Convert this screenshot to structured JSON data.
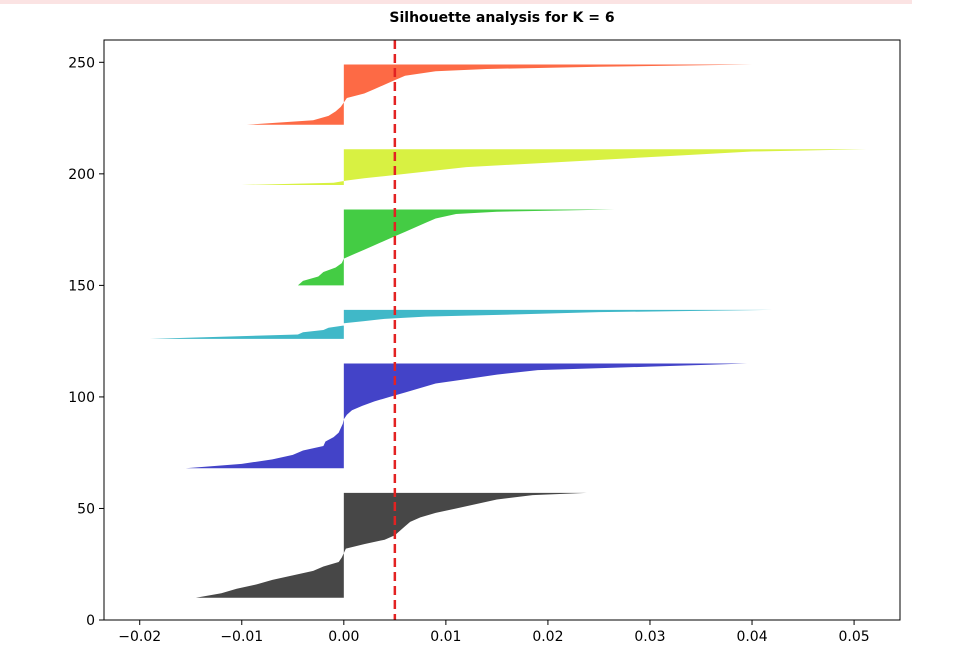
{
  "chart_data": {
    "type": "area",
    "title": "Silhouette analysis for K = 6",
    "xlabel": "",
    "ylabel": "",
    "xlim": [
      -0.0235,
      0.0545
    ],
    "ylim": [
      0,
      260
    ],
    "xticks": [
      -0.02,
      -0.01,
      0.0,
      0.01,
      0.02,
      0.03,
      0.04,
      0.05
    ],
    "xtick_labels": [
      "−0.02",
      "−0.01",
      "0.00",
      "0.01",
      "0.02",
      "0.03",
      "0.04",
      "0.05"
    ],
    "yticks": [
      0,
      50,
      100,
      150,
      200,
      250
    ],
    "ytick_labels": [
      "0",
      "50",
      "100",
      "150",
      "200",
      "250"
    ],
    "grid": false,
    "average_silhouette_score": 0.005,
    "series": [
      {
        "color": "#474747",
        "y_lower": 10,
        "y_upper": 57,
        "profile": [
          [
            10,
            -0.0145
          ],
          [
            12,
            -0.012
          ],
          [
            14,
            -0.0105
          ],
          [
            16,
            -0.0085
          ],
          [
            18,
            -0.007
          ],
          [
            20,
            -0.005
          ],
          [
            22,
            -0.003
          ],
          [
            24,
            -0.002
          ],
          [
            26,
            -0.0005
          ],
          [
            28,
            -0.0002
          ],
          [
            30,
            0.0
          ],
          [
            32,
            0.0002
          ],
          [
            34,
            0.002
          ],
          [
            36,
            0.004
          ],
          [
            38,
            0.005
          ],
          [
            40,
            0.0055
          ],
          [
            42,
            0.006
          ],
          [
            44,
            0.0065
          ],
          [
            46,
            0.0075
          ],
          [
            48,
            0.009
          ],
          [
            50,
            0.011
          ],
          [
            52,
            0.013
          ],
          [
            54,
            0.015
          ],
          [
            56,
            0.0185
          ],
          [
            57,
            0.0238
          ]
        ]
      },
      {
        "color": "#4343c8",
        "y_lower": 68,
        "y_upper": 115,
        "profile": [
          [
            68,
            -0.0155
          ],
          [
            70,
            -0.01
          ],
          [
            72,
            -0.007
          ],
          [
            74,
            -0.005
          ],
          [
            76,
            -0.004
          ],
          [
            78,
            -0.002
          ],
          [
            80,
            -0.0018
          ],
          [
            82,
            -0.001
          ],
          [
            84,
            -0.0005
          ],
          [
            86,
            -0.0003
          ],
          [
            88,
            -0.0001
          ],
          [
            90,
            0.0
          ],
          [
            92,
            0.0003
          ],
          [
            94,
            0.0008
          ],
          [
            96,
            0.0018
          ],
          [
            98,
            0.003
          ],
          [
            100,
            0.0045
          ],
          [
            102,
            0.006
          ],
          [
            104,
            0.0075
          ],
          [
            106,
            0.009
          ],
          [
            108,
            0.012
          ],
          [
            110,
            0.015
          ],
          [
            112,
            0.019
          ],
          [
            113,
            0.026
          ],
          [
            115,
            0.0395
          ]
        ]
      },
      {
        "color": "#40b8c8",
        "y_lower": 126,
        "y_upper": 139,
        "profile": [
          [
            126,
            -0.019
          ],
          [
            127,
            -0.012
          ],
          [
            128,
            -0.0045
          ],
          [
            129,
            -0.004
          ],
          [
            130,
            -0.002
          ],
          [
            131,
            -0.0015
          ],
          [
            132,
            0.0
          ],
          [
            133,
            0.0
          ],
          [
            134,
            0.002
          ],
          [
            135,
            0.004
          ],
          [
            136,
            0.008
          ],
          [
            137,
            0.017
          ],
          [
            138,
            0.025
          ],
          [
            139,
            0.042
          ]
        ]
      },
      {
        "color": "#44cc44",
        "y_lower": 150,
        "y_upper": 184,
        "profile": [
          [
            150,
            -0.0045
          ],
          [
            152,
            -0.004
          ],
          [
            154,
            -0.0025
          ],
          [
            156,
            -0.002
          ],
          [
            158,
            -0.0008
          ],
          [
            160,
            -0.0002
          ],
          [
            162,
            0.0
          ],
          [
            164,
            0.001
          ],
          [
            166,
            0.002
          ],
          [
            168,
            0.003
          ],
          [
            170,
            0.004
          ],
          [
            172,
            0.005
          ],
          [
            174,
            0.006
          ],
          [
            176,
            0.007
          ],
          [
            178,
            0.008
          ],
          [
            180,
            0.009
          ],
          [
            182,
            0.011
          ],
          [
            183,
            0.015
          ],
          [
            184,
            0.0265
          ]
        ]
      },
      {
        "color": "#d8f142",
        "y_lower": 195,
        "y_upper": 211,
        "profile": [
          [
            195,
            -0.01
          ],
          [
            196,
            -0.001
          ],
          [
            197,
            0.0003
          ],
          [
            198,
            0.002
          ],
          [
            199,
            0.004
          ],
          [
            200,
            0.006
          ],
          [
            201,
            0.008
          ],
          [
            202,
            0.01
          ],
          [
            203,
            0.012
          ],
          [
            204,
            0.016
          ],
          [
            205,
            0.02
          ],
          [
            206,
            0.024
          ],
          [
            207,
            0.028
          ],
          [
            208,
            0.032
          ],
          [
            209,
            0.036
          ],
          [
            210,
            0.04
          ],
          [
            211,
            0.0512
          ]
        ]
      },
      {
        "color": "#fd6a45",
        "y_lower": 222,
        "y_upper": 249,
        "profile": [
          [
            222,
            -0.0095
          ],
          [
            224,
            -0.003
          ],
          [
            226,
            -0.0015
          ],
          [
            228,
            -0.0008
          ],
          [
            230,
            -0.0003
          ],
          [
            232,
            0.0
          ],
          [
            234,
            0.0003
          ],
          [
            236,
            0.002
          ],
          [
            238,
            0.003
          ],
          [
            240,
            0.004
          ],
          [
            242,
            0.005
          ],
          [
            244,
            0.006
          ],
          [
            246,
            0.009
          ],
          [
            247,
            0.014
          ],
          [
            248,
            0.025
          ],
          [
            249,
            0.04
          ]
        ]
      }
    ],
    "colors": {
      "average_line": "#e32222",
      "axis": "#000000"
    }
  }
}
